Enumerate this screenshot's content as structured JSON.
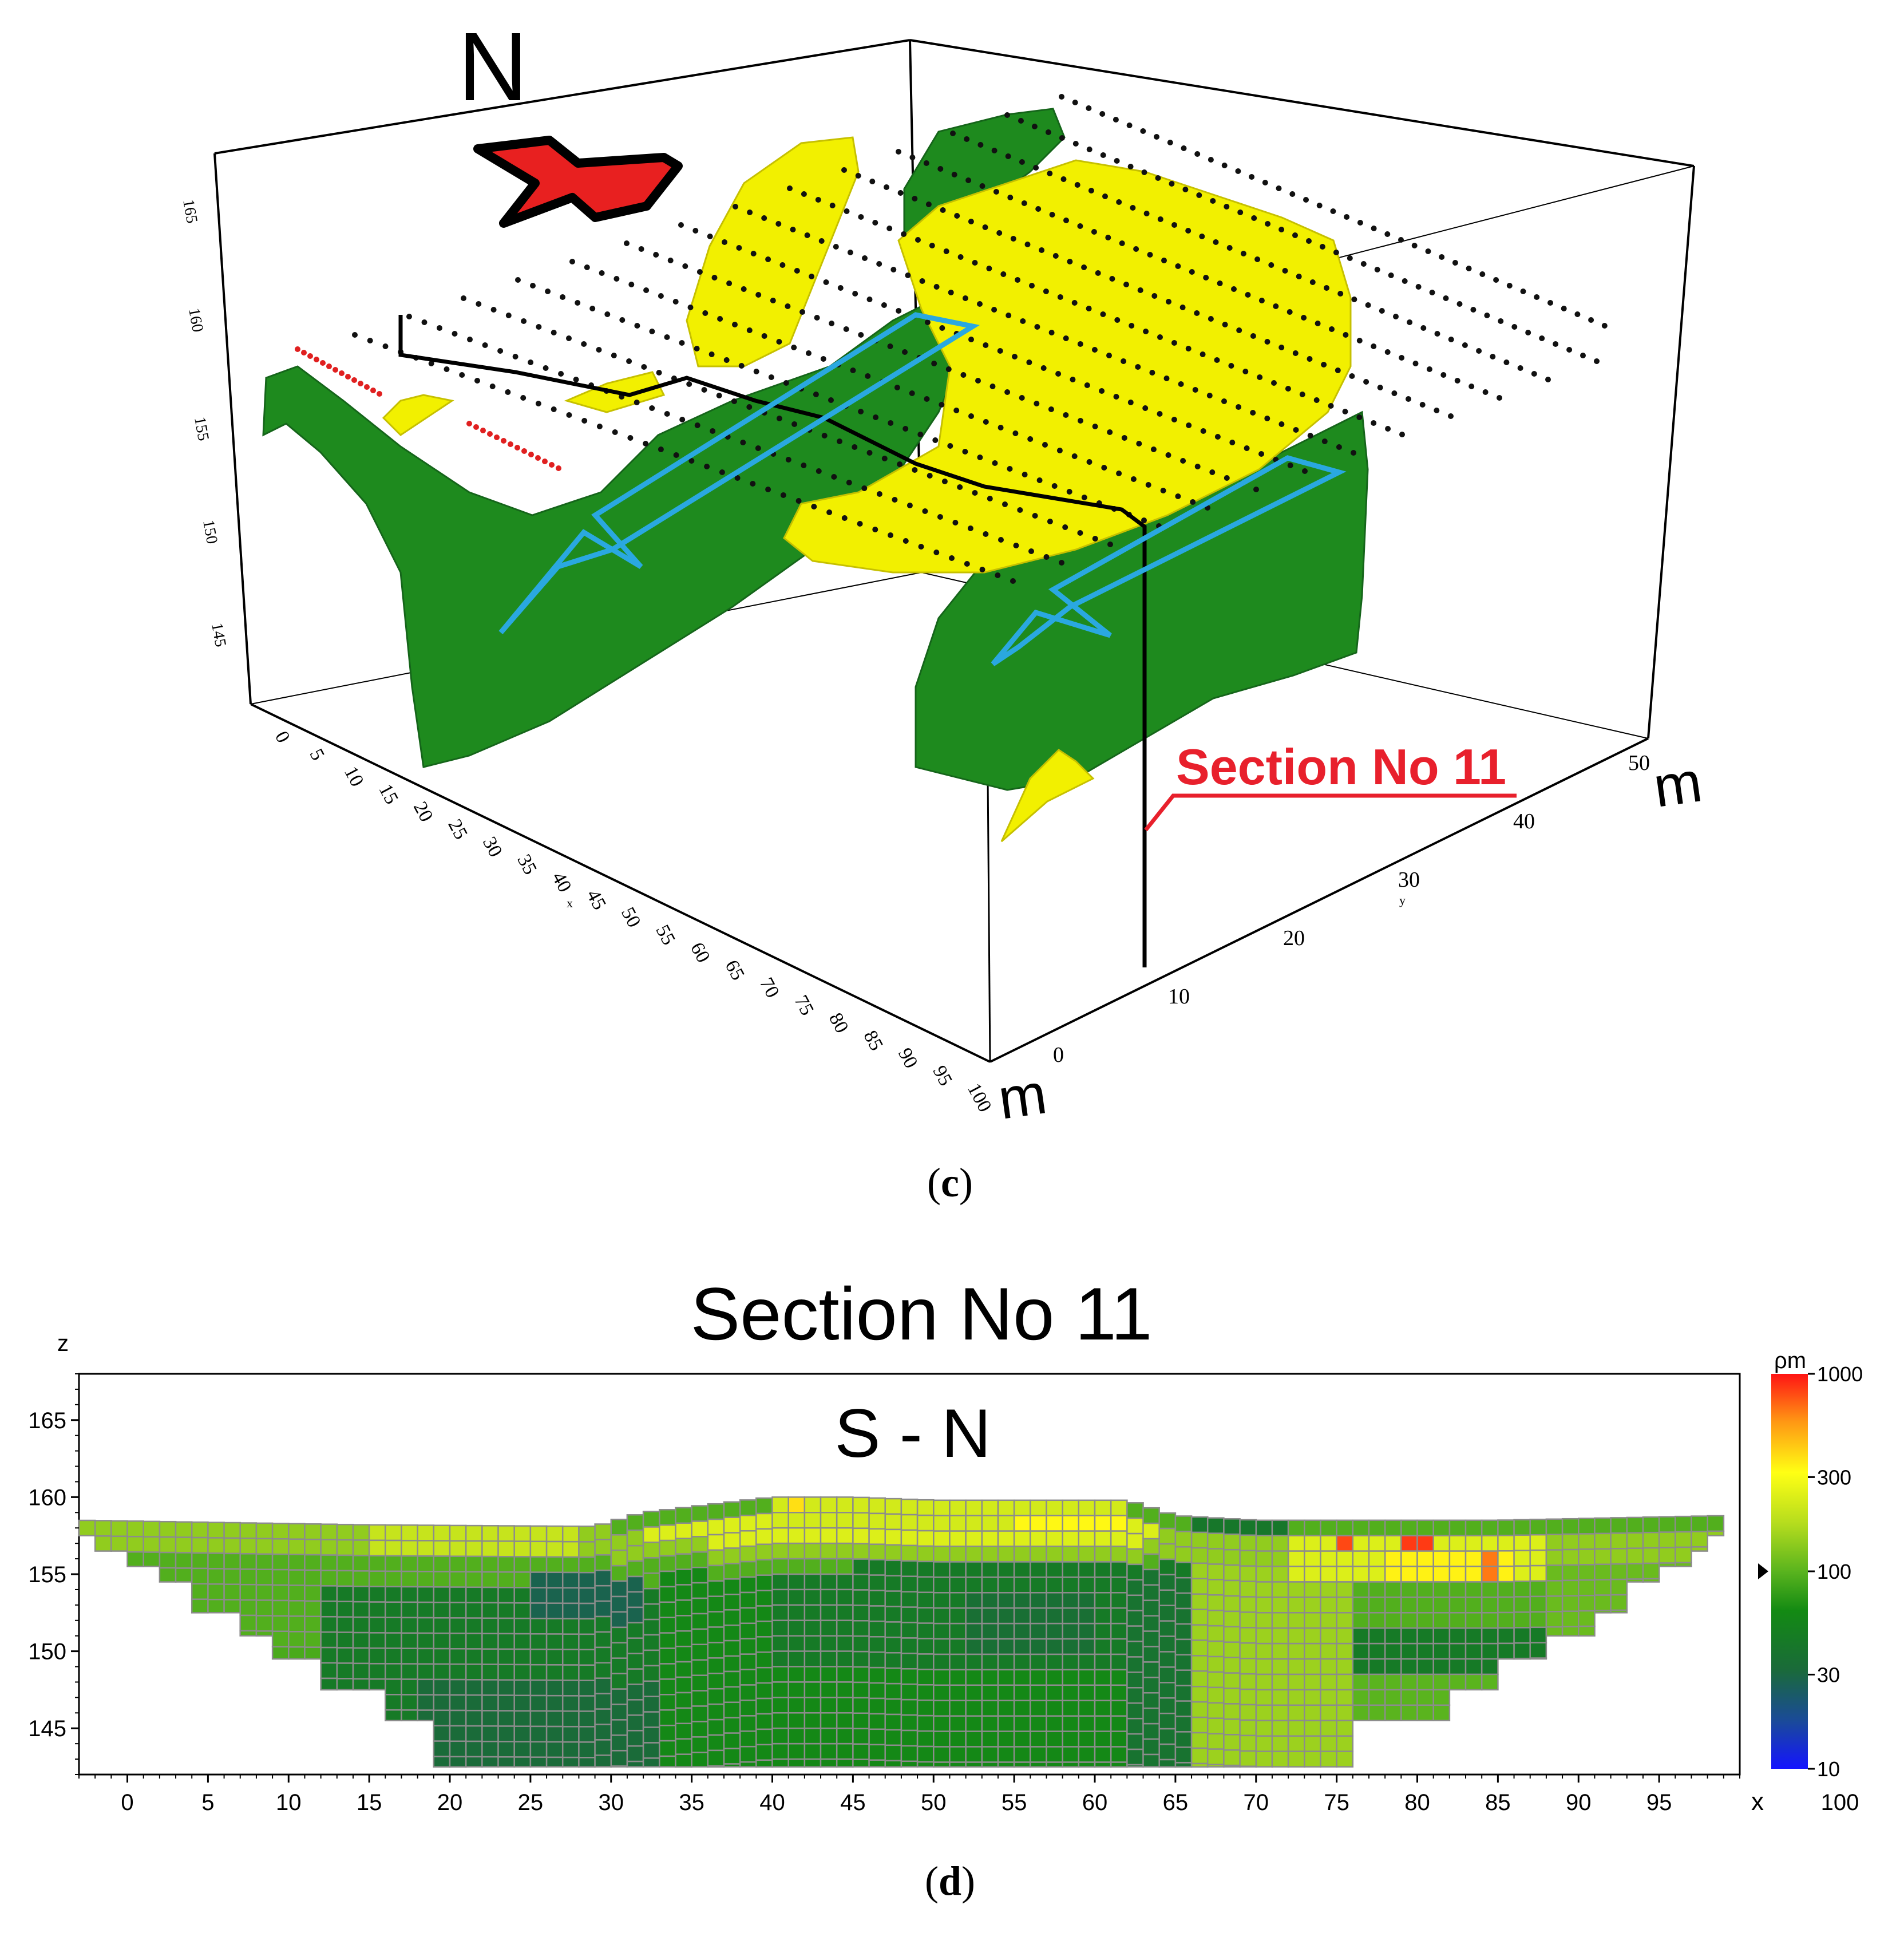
{
  "panel_c": {
    "caption_open": "(",
    "caption_letter": "c",
    "caption_close": ")",
    "north_label": "N",
    "section_callout": "Section No 11",
    "x_unit": "m",
    "y_unit": "m",
    "x_axis_letter": "x",
    "y_axis_letter": "y",
    "x_ticks": [
      "0",
      "5",
      "10",
      "15",
      "20",
      "25",
      "30",
      "35",
      "40",
      "45",
      "50",
      "55",
      "60",
      "65",
      "70",
      "75",
      "80",
      "85",
      "90",
      "95",
      "100"
    ],
    "y_ticks": [
      "0",
      "10",
      "20",
      "30",
      "40",
      "50"
    ],
    "z_ticks": [
      "165",
      "160",
      "155",
      "150",
      "145"
    ],
    "colors": {
      "resistive_body": "#f2f000",
      "conductive_body": "#1e8a1e",
      "flow_arrows": "#2aa8e0",
      "north_arrow": "#e82020",
      "section_callout": "#e8202c",
      "profile_points": "#111111",
      "profile_points_red": "#e02020"
    }
  },
  "panel_d": {
    "caption_open": "(",
    "caption_letter": "d",
    "caption_close": ")"
  },
  "chart_data": {
    "type": "heatmap",
    "title": "Section No 11",
    "subtitle": "S - N",
    "xlabel": "x",
    "ylabel": "z",
    "xlim": [
      -3,
      100
    ],
    "ylim": [
      142,
      168
    ],
    "x_ticks": [
      0,
      5,
      10,
      15,
      20,
      25,
      30,
      35,
      40,
      45,
      50,
      55,
      60,
      65,
      70,
      75,
      80,
      85,
      90,
      95
    ],
    "x_tick_labels": [
      "0",
      "5",
      "10",
      "15",
      "20",
      "25",
      "30",
      "35",
      "40",
      "45",
      "50",
      "55",
      "60",
      "65",
      "70",
      "75",
      "80",
      "85",
      "90",
      "95"
    ],
    "x_end_label": "100",
    "y_ticks": [
      145,
      150,
      155,
      160,
      165
    ],
    "y_tick_labels": [
      "145",
      "150",
      "155",
      "160",
      "165"
    ],
    "colorbar": {
      "label": "ρm",
      "scale": "log",
      "range": [
        10,
        1000
      ],
      "ticks": [
        10,
        30,
        100,
        300,
        1000
      ],
      "tick_labels": [
        "10",
        "30",
        "100",
        "300",
        "1000"
      ],
      "marker_value": 100
    },
    "grid_lines": true,
    "column_width": 1,
    "row_height": 1,
    "surface_top": [
      {
        "x": -3,
        "z": 158.5
      },
      {
        "x": 15,
        "z": 158.2
      },
      {
        "x": 29,
        "z": 158.1
      },
      {
        "x": 32,
        "z": 159.0
      },
      {
        "x": 40,
        "z": 160.0
      },
      {
        "x": 45,
        "z": 160.0
      },
      {
        "x": 50,
        "z": 159.8
      },
      {
        "x": 62,
        "z": 159.8
      },
      {
        "x": 65,
        "z": 158.8
      },
      {
        "x": 70,
        "z": 158.5
      },
      {
        "x": 85,
        "z": 158.5
      },
      {
        "x": 99,
        "z": 158.8
      }
    ],
    "bottom_left": [
      {
        "from_x": -3,
        "to_x": -2,
        "z": 157.5
      },
      {
        "from_x": -2,
        "to_x": 0,
        "z": 156.5
      },
      {
        "from_x": 0,
        "to_x": 2,
        "z": 155.5
      },
      {
        "from_x": 2,
        "to_x": 4,
        "z": 154.5
      },
      {
        "from_x": 4,
        "to_x": 7,
        "z": 152.5
      },
      {
        "from_x": 7,
        "to_x": 9,
        "z": 151.0
      },
      {
        "from_x": 9,
        "to_x": 12,
        "z": 149.5
      },
      {
        "from_x": 12,
        "to_x": 16,
        "z": 147.5
      },
      {
        "from_x": 16,
        "to_x": 19,
        "z": 145.5
      },
      {
        "from_x": 19,
        "to_x": 76,
        "z": 142.5
      }
    ],
    "bottom_right": [
      {
        "from_x": 76,
        "to_x": 82,
        "z": 145.5
      },
      {
        "from_x": 82,
        "to_x": 85,
        "z": 147.5
      },
      {
        "from_x": 85,
        "to_x": 88,
        "z": 149.5
      },
      {
        "from_x": 88,
        "to_x": 91,
        "z": 151.0
      },
      {
        "from_x": 91,
        "to_x": 93,
        "z": 152.5
      },
      {
        "from_x": 93,
        "to_x": 95,
        "z": 154.5
      },
      {
        "from_x": 95,
        "to_x": 97,
        "z": 155.5
      },
      {
        "from_x": 97,
        "to_x": 98,
        "z": 156.5
      },
      {
        "from_x": 98,
        "to_x": 99,
        "z": 157.5
      }
    ],
    "resistivity_zones": [
      {
        "x_from": -3,
        "x_to": 100,
        "z_from": 150,
        "z_to": 161,
        "rho": 95
      },
      {
        "x_from": 12,
        "x_to": 40,
        "z_from": 142,
        "z_to": 154.5,
        "rho": 45
      },
      {
        "x_from": 18,
        "x_to": 33,
        "z_from": 142,
        "z_to": 148,
        "rho": 32
      },
      {
        "x_from": 25,
        "x_to": 32,
        "z_from": 152,
        "z_to": 155,
        "rho": 28
      },
      {
        "x_from": 33,
        "x_to": 66,
        "z_from": 142,
        "z_to": 155,
        "rho": 60
      },
      {
        "x_from": 40,
        "x_to": 66,
        "z_from": 149,
        "z_to": 155.5,
        "rho": 45
      },
      {
        "x_from": 52,
        "x_to": 60,
        "z_from": 150,
        "z_to": 154,
        "rho": 35
      },
      {
        "x_from": 62,
        "x_to": 66,
        "z_from": 142,
        "z_to": 155,
        "rho": 38
      },
      {
        "x_from": 66,
        "x_to": 76,
        "z_from": 142,
        "z_to": 156,
        "rho": 150
      },
      {
        "x_from": 66,
        "x_to": 72,
        "z_from": 156,
        "z_to": 158.5,
        "rho": 42
      },
      {
        "x_from": 76,
        "x_to": 88,
        "z_from": 149,
        "z_to": 152,
        "rho": 45
      },
      {
        "x_from": 76,
        "x_to": 88,
        "z_from": 145.5,
        "z_to": 149,
        "rho": 100
      },
      {
        "x_from": 88,
        "x_to": 100,
        "z_from": 145,
        "z_to": 156,
        "rho": 110
      },
      {
        "x_from": -3,
        "x_to": 100,
        "z_from": 156,
        "z_to": 158,
        "rho": 140
      },
      {
        "x_from": 15,
        "x_to": 28,
        "z_from": 156.5,
        "z_to": 158,
        "rho": 200
      },
      {
        "x_from": 32,
        "x_to": 64,
        "z_from": 157,
        "z_to": 158.5,
        "rho": 240
      },
      {
        "x_from": 40,
        "x_to": 62,
        "z_from": 158,
        "z_to": 160,
        "rho": 220
      },
      {
        "x_from": 55,
        "x_to": 62,
        "z_from": 158,
        "z_to": 159,
        "rho": 330
      },
      {
        "x_from": 72,
        "x_to": 88,
        "z_from": 154.5,
        "z_to": 158,
        "rho": 240
      },
      {
        "x_from": 78,
        "x_to": 86,
        "z_from": 155,
        "z_to": 157,
        "rho": 340
      },
      {
        "x_from": 75,
        "x_to": 76,
        "z_from": 157,
        "z_to": 158,
        "rho": 800
      },
      {
        "x_from": 79,
        "x_to": 81,
        "z_from": 157,
        "z_to": 158,
        "rho": 850
      },
      {
        "x_from": 84,
        "x_to": 85,
        "z_from": 155,
        "z_to": 157,
        "rho": 650
      },
      {
        "x_from": 41,
        "x_to": 42,
        "z_from": 159,
        "z_to": 160,
        "rho": 380
      }
    ]
  }
}
